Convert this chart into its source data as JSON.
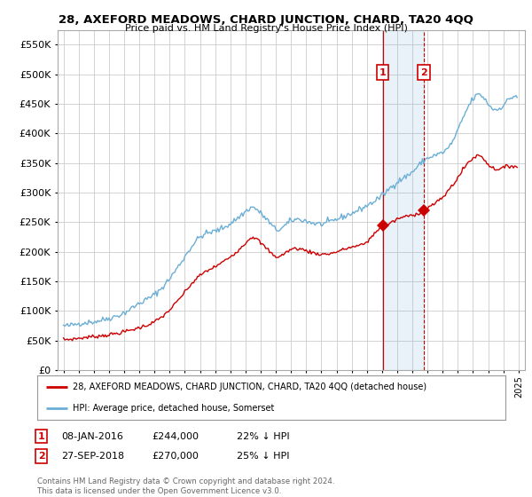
{
  "title": "28, AXEFORD MEADOWS, CHARD JUNCTION, CHARD, TA20 4QQ",
  "subtitle": "Price paid vs. HM Land Registry's House Price Index (HPI)",
  "legend_line1": "28, AXEFORD MEADOWS, CHARD JUNCTION, CHARD, TA20 4QQ (detached house)",
  "legend_line2": "HPI: Average price, detached house, Somerset",
  "annotation1_date": "08-JAN-2016",
  "annotation1_price": 244000,
  "annotation1_pct": "22% ↓ HPI",
  "annotation2_date": "27-SEP-2018",
  "annotation2_price": 270000,
  "annotation2_pct": "25% ↓ HPI",
  "footnote": "Contains HM Land Registry data © Crown copyright and database right 2024.\nThis data is licensed under the Open Government Licence v3.0.",
  "hpi_color": "#6baed6",
  "sale_color": "#cc0000",
  "annotation_color": "#cc0000",
  "background_color": "#ffffff",
  "grid_color": "#cccccc",
  "ylim": [
    0,
    575000
  ],
  "yticks": [
    0,
    50000,
    100000,
    150000,
    200000,
    250000,
    300000,
    350000,
    400000,
    450000,
    500000,
    550000
  ],
  "sale1_year": 2016.04,
  "sale1_value": 244000,
  "sale2_year": 2018.75,
  "sale2_value": 270000
}
